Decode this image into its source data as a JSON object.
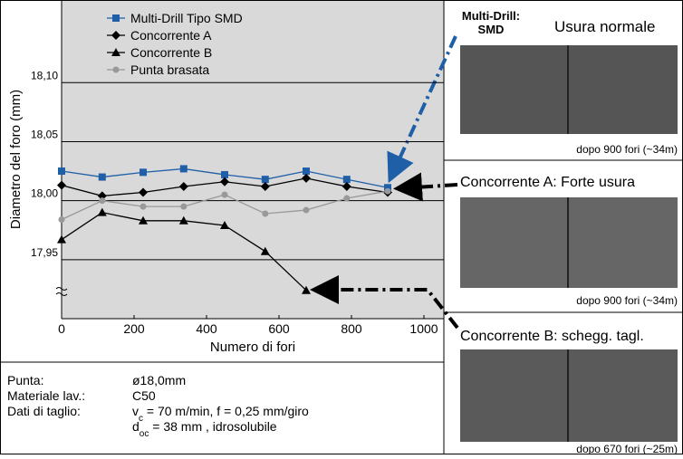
{
  "chart_data": {
    "type": "line",
    "y_label": "Diametro del foro (mm)",
    "x_label": "Numero di fori",
    "x": [
      0,
      112,
      225,
      337,
      450,
      562,
      675,
      787,
      900
    ],
    "series": [
      {
        "name": "Multi-Drill Tipo SMD",
        "color": "#1f5fa8",
        "marker": "square",
        "values": [
          18.025,
          18.02,
          18.024,
          18.027,
          18.022,
          18.018,
          18.025,
          18.018,
          18.011
        ]
      },
      {
        "name": "Concorrente A",
        "color": "#000000",
        "marker": "diamond",
        "values": [
          18.013,
          18.004,
          18.007,
          18.012,
          18.016,
          18.012,
          18.019,
          18.012,
          18.007
        ]
      },
      {
        "name": "Concorrente B",
        "color": "#000000",
        "marker": "triangle",
        "values": [
          17.967,
          17.99,
          17.983,
          17.983,
          17.979,
          17.957,
          17.924,
          null,
          null
        ]
      },
      {
        "name": "Punta brasata",
        "color": "#999999",
        "marker": "circle",
        "values": [
          17.984,
          18.0,
          17.995,
          17.995,
          18.005,
          17.989,
          17.992,
          18.002,
          18.008
        ]
      }
    ],
    "xlim": [
      0,
      1055
    ],
    "xticks": [
      0,
      200,
      400,
      600,
      800,
      1000
    ],
    "ylim": [
      17.9,
      18.17
    ],
    "yticks": [
      {
        "value": 17.95,
        "label": "17,95"
      },
      {
        "value": 18.0,
        "label": "18,00"
      },
      {
        "value": 18.05,
        "label": "18,05"
      },
      {
        "value": 18.1,
        "label": "18,10"
      }
    ],
    "grid": true
  },
  "photos": [
    {
      "title": [
        "Multi-Drill:",
        "SMD"
      ],
      "subtitle": "Usura normale",
      "caption": "dopo 900 fori (~34m)"
    },
    {
      "title": "Concorrente A: Forte usura",
      "caption": "dopo 900 fori (~34m)"
    },
    {
      "title": "Concorrente B: schegg. tagl.",
      "caption": "dopo 670 fori (~25m)"
    }
  ],
  "specs": [
    {
      "label": "Punta:",
      "value": [
        "ø18,0mm"
      ]
    },
    {
      "label": "Materiale lav.:",
      "value": [
        "C50"
      ]
    },
    {
      "label": "Dati di taglio:",
      "value": [
        "v",
        "c",
        " = 70 m/min,  f = 0,25 mm/giro"
      ]
    },
    {
      "label": "",
      "value": [
        "d",
        "oc",
        " = 38 mm , idrosolubile"
      ]
    }
  ]
}
